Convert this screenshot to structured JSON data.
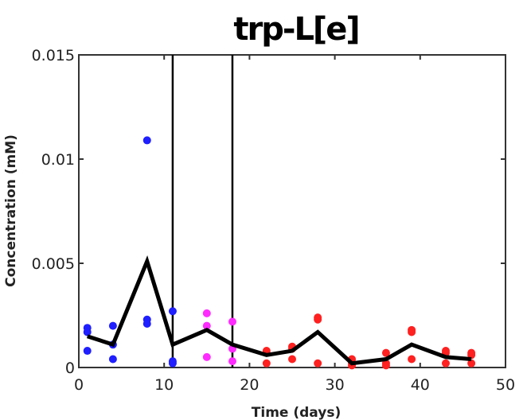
{
  "chart_data": {
    "type": "scatter",
    "title": "trp-L[e]",
    "xlabel": "Time (days)",
    "ylabel": "Concentration (mM)",
    "xlim": [
      0,
      50
    ],
    "ylim": [
      0,
      0.015
    ],
    "x_ticks": [
      0,
      10,
      20,
      30,
      40,
      50
    ],
    "x_tick_labels": [
      "0",
      "10",
      "20",
      "30",
      "40",
      "50"
    ],
    "y_ticks": [
      0,
      0.005,
      0.01,
      0.015
    ],
    "y_tick_labels": [
      "0",
      "0.005",
      "0.01",
      "0.015"
    ],
    "grid": false,
    "vertical_lines": [
      11,
      18
    ],
    "colors": {
      "blue": "#1f1fff",
      "magenta": "#ff2bff",
      "red": "#ff2020",
      "mean_line": "#000000"
    },
    "series": [
      {
        "color": "blue",
        "points": [
          [
            1,
            0.0019
          ],
          [
            1,
            0.0017
          ],
          [
            1,
            0.0008
          ],
          [
            4,
            0.002
          ],
          [
            4,
            0.0011
          ],
          [
            4,
            0.0004
          ],
          [
            8,
            0.0109
          ],
          [
            8,
            0.0023
          ],
          [
            8,
            0.0021
          ],
          [
            11,
            0.0027
          ],
          [
            11,
            0.0003
          ],
          [
            11,
            0.0002
          ]
        ]
      },
      {
        "color": "magenta",
        "points": [
          [
            15,
            0.0026
          ],
          [
            15,
            0.002
          ],
          [
            15,
            0.0005
          ],
          [
            18,
            0.0022
          ],
          [
            18,
            0.0009
          ],
          [
            18,
            0.0003
          ]
        ]
      },
      {
        "color": "red",
        "points": [
          [
            22,
            0.0008
          ],
          [
            22,
            0.0007
          ],
          [
            22,
            0.0002
          ],
          [
            25,
            0.001
          ],
          [
            25,
            0.0009
          ],
          [
            25,
            0.0004
          ],
          [
            28,
            0.0024
          ],
          [
            28,
            0.0023
          ],
          [
            28,
            0.0002
          ],
          [
            32,
            0.0004
          ],
          [
            32,
            0.0002
          ],
          [
            32,
            0.0001
          ],
          [
            36,
            0.0007
          ],
          [
            36,
            0.0002
          ],
          [
            36,
            0.0001
          ],
          [
            39,
            0.0018
          ],
          [
            39,
            0.0017
          ],
          [
            39,
            0.0004
          ],
          [
            43,
            0.0008
          ],
          [
            43,
            0.0007
          ],
          [
            43,
            0.0002
          ],
          [
            46,
            0.0007
          ],
          [
            46,
            0.0006
          ],
          [
            46,
            0.0002
          ]
        ]
      }
    ],
    "mean_line": {
      "x": [
        1,
        4,
        8,
        11,
        15,
        18,
        22,
        25,
        28,
        32,
        36,
        39,
        43,
        46
      ],
      "y": [
        0.0015,
        0.0011,
        0.0051,
        0.0011,
        0.0018,
        0.0011,
        0.0006,
        0.0008,
        0.0017,
        0.0002,
        0.0004,
        0.0011,
        0.0005,
        0.0004
      ]
    }
  }
}
